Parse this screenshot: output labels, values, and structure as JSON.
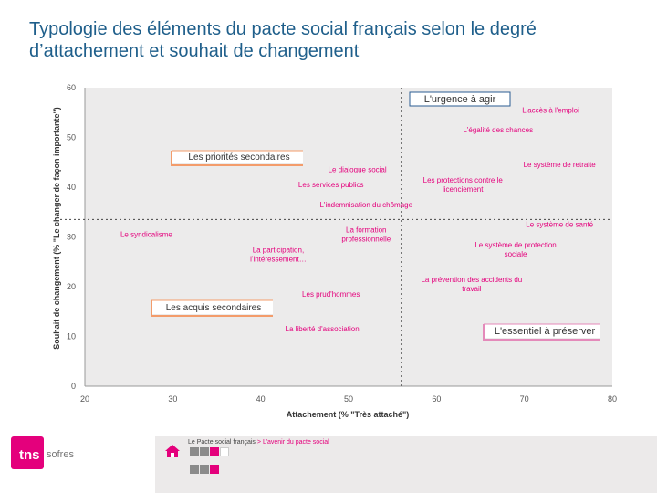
{
  "title": "Typologie des éléments du pacte social français selon le degré d’attachement et souhait de changement",
  "footer": {
    "breadcrumb_main": "Le Pacte social français",
    "breadcrumb_arrow": ">",
    "breadcrumb_sub": "L’avenir du pacte social",
    "logo_text": "tns",
    "logo_subtext": "sofres"
  },
  "colors": {
    "accent": "#e4007c",
    "title": "#1f5f8b",
    "plot_bg": "#ecebeb",
    "point_label": "#e4007c",
    "box_orange": "#f39c6b",
    "box_pink": "#e48aba",
    "box_blue": "#2b5d93"
  },
  "chart_data": {
    "type": "scatter",
    "title": "",
    "xlabel": "Attachement (% \"Très attaché\")",
    "ylabel": "Souhait de changement (% \"Le changer de façon importante\")",
    "xlim": [
      20,
      80
    ],
    "ylim": [
      0,
      60
    ],
    "xticks": [
      20,
      30,
      40,
      50,
      60,
      70,
      80
    ],
    "yticks": [
      0,
      10,
      20,
      30,
      40,
      50,
      60
    ],
    "divider_x": 56,
    "divider_y": 33.5,
    "points": [
      {
        "label": "L'accès à l'emploi",
        "x": 73,
        "y": 55
      },
      {
        "label": "L'égalité des chances",
        "x": 67,
        "y": 51
      },
      {
        "label": "Le système de retraite",
        "x": 74,
        "y": 44
      },
      {
        "label": "Le dialogue social",
        "x": 51,
        "y": 43
      },
      {
        "label": "Les services publics",
        "x": 48,
        "y": 40
      },
      {
        "label": "Les protections contre le licenciement",
        "x": 63,
        "y": 40
      },
      {
        "label": "L'indemnisation du chômage",
        "x": 52,
        "y": 36
      },
      {
        "label": "Le système de santé",
        "x": 74,
        "y": 32
      },
      {
        "label": "Le syndicalisme",
        "x": 27,
        "y": 30
      },
      {
        "label": "La formation professionnelle",
        "x": 52,
        "y": 30
      },
      {
        "label": "La participation, l'intéressement",
        "x": 42,
        "y": 26
      },
      {
        "label": "Le système de protection sociale",
        "x": 69,
        "y": 27
      },
      {
        "label": "La prévention des accidents du travail",
        "x": 64,
        "y": 20
      },
      {
        "label": "Les prud'hommes",
        "x": 48,
        "y": 18
      },
      {
        "label": "La liberté d'association",
        "x": 47,
        "y": 11
      }
    ],
    "point_label_lines": [
      [
        "L'accès à l'emploi"
      ],
      [
        "L'égalité des chances"
      ],
      [
        "Le système de retraite"
      ],
      [
        "Le dialogue social"
      ],
      [
        "Les services publics"
      ],
      [
        "Les protections contre le",
        "licenciement"
      ],
      [
        "L'indemnisation du chômage"
      ],
      [
        "Le système de santé"
      ],
      [
        "Le syndicalisme"
      ],
      [
        "La formation",
        "professionnelle"
      ],
      [
        "La participation,",
        "l'intéressement…"
      ],
      [
        "Le système de protection",
        "sociale"
      ],
      [
        "La prévention des accidents du",
        "travail"
      ],
      [
        "Les prud'hommes"
      ],
      [
        "La liberté d'association"
      ]
    ],
    "categories": [
      {
        "label": "L'urgence à agir",
        "style": "blue"
      },
      {
        "label": "Les priorités secondaires",
        "style": "orange"
      },
      {
        "label": "Les acquis secondaires",
        "style": "orange"
      },
      {
        "label": "L'essentiel à préserver",
        "style": "pink"
      }
    ]
  }
}
